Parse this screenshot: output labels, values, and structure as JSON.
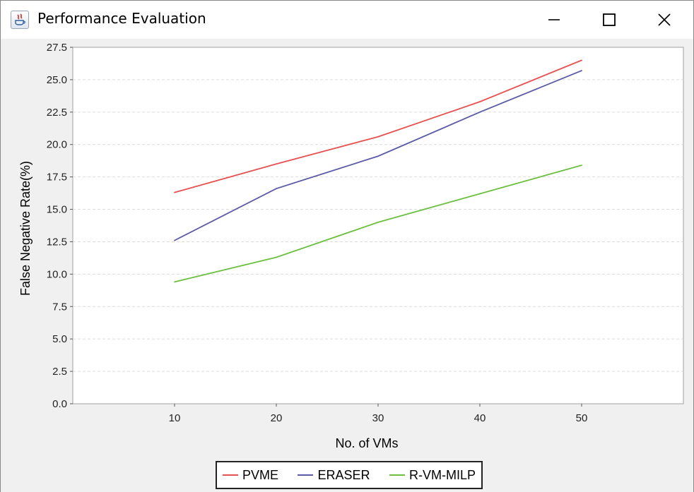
{
  "window": {
    "title": "Performance Evaluation",
    "controls": {
      "minimize_icon": "minimize-icon",
      "maximize_icon": "maximize-icon",
      "close_icon": "close-icon"
    }
  },
  "chart_data": {
    "type": "line",
    "title": "",
    "xlabel": "No. of VMs",
    "ylabel": "False Negative Rate(%)",
    "x": [
      10,
      20,
      30,
      40,
      50
    ],
    "xlim": [
      0,
      60
    ],
    "ylim": [
      0,
      27.5
    ],
    "yticks": [
      "0.0",
      "2.5",
      "5.0",
      "7.5",
      "10.0",
      "12.5",
      "15.0",
      "17.5",
      "20.0",
      "22.5",
      "25.0",
      "27.5"
    ],
    "xticks": [
      "10",
      "20",
      "30",
      "40",
      "50"
    ],
    "grid": true,
    "legend": "bottom",
    "series": [
      {
        "name": "PVME",
        "color": "#e8504f",
        "values": [
          16.3,
          18.5,
          20.6,
          23.3,
          26.5
        ]
      },
      {
        "name": "ERASER",
        "color": "#5a5aa8",
        "values": [
          12.6,
          16.6,
          19.1,
          22.5,
          25.7
        ]
      },
      {
        "name": "R-VM-MILP",
        "color": "#6cbf3f",
        "values": [
          9.4,
          11.3,
          14.0,
          16.2,
          18.4
        ]
      }
    ]
  }
}
